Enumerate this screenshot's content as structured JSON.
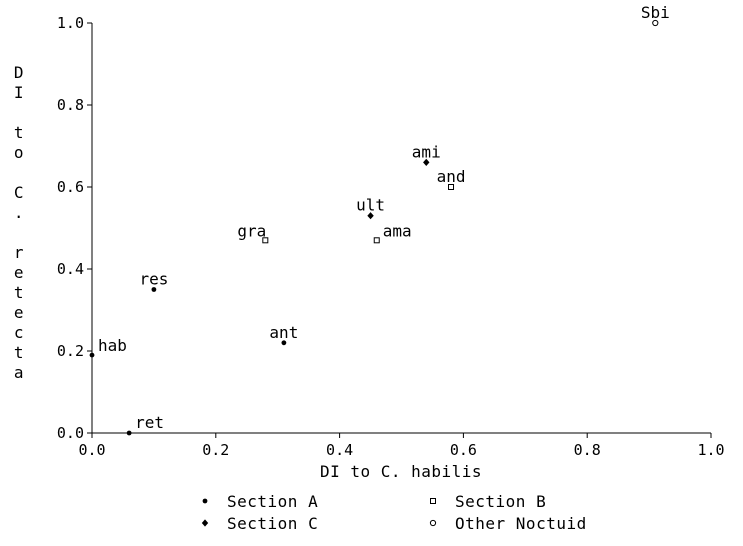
{
  "chart_data": {
    "type": "scatter",
    "title": "",
    "xlabel": "DI to C. habilis",
    "ylabel": "DI to C. retecta",
    "xlim": [
      0,
      1.0
    ],
    "ylim": [
      0,
      1.0
    ],
    "grid": false,
    "x_ticks": [
      "0.0",
      "0.2",
      "0.4",
      "0.6",
      "0.8",
      "1.0"
    ],
    "y_ticks": [
      "0.0",
      "0.2",
      "0.4",
      "0.6",
      "0.8",
      "1.0"
    ],
    "legend_position": "bottom",
    "series": [
      {
        "name": "Section A",
        "marker": "dot",
        "points": [
          {
            "label": "hab",
            "x": 0.0,
            "y": 0.19
          },
          {
            "label": "ret",
            "x": 0.06,
            "y": 0.0
          },
          {
            "label": "res",
            "x": 0.1,
            "y": 0.35
          },
          {
            "label": "ant",
            "x": 0.31,
            "y": 0.22
          }
        ]
      },
      {
        "name": "Section B",
        "marker": "open-square",
        "points": [
          {
            "label": "gra",
            "x": 0.28,
            "y": 0.47
          },
          {
            "label": "ama",
            "x": 0.46,
            "y": 0.47
          },
          {
            "label": "and",
            "x": 0.58,
            "y": 0.6
          }
        ]
      },
      {
        "name": "Section C",
        "marker": "diamond",
        "points": [
          {
            "label": "ult",
            "x": 0.45,
            "y": 0.53
          },
          {
            "label": "ami",
            "x": 0.54,
            "y": 0.66
          }
        ]
      },
      {
        "name": "Other Noctuid",
        "marker": "open-circle",
        "points": [
          {
            "label": "Sbi",
            "x": 0.91,
            "y": 1.0
          }
        ]
      }
    ]
  }
}
